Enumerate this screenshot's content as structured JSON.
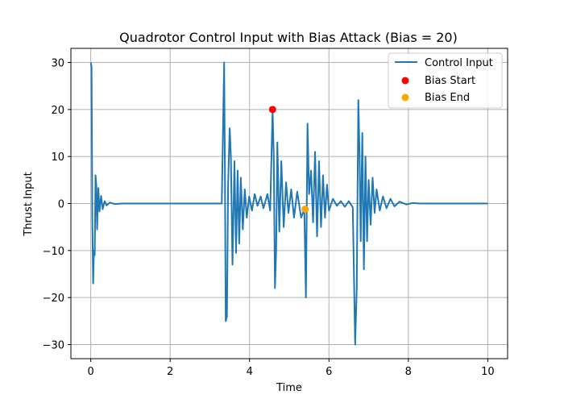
{
  "chart_data": {
    "type": "line",
    "title": "Quadrotor Control Input with Bias Attack (Bias = 20)",
    "xlabel": "Time",
    "ylabel": "Thrust Input",
    "xlim": [
      -0.5,
      10.5
    ],
    "ylim": [
      -33,
      33
    ],
    "xticks": [
      0,
      2,
      4,
      6,
      8,
      10
    ],
    "yticks": [
      -30,
      -20,
      -10,
      0,
      10,
      20,
      30
    ],
    "grid": true,
    "legend_position": "top-right",
    "series": [
      {
        "name": "Control Input",
        "color": "#1f77b4",
        "points": [
          [
            0.0,
            30
          ],
          [
            0.02,
            29
          ],
          [
            0.04,
            -3.5
          ],
          [
            0.06,
            -17
          ],
          [
            0.08,
            -10
          ],
          [
            0.1,
            -11
          ],
          [
            0.12,
            6
          ],
          [
            0.14,
            4
          ],
          [
            0.16,
            -5.5
          ],
          [
            0.19,
            3.3
          ],
          [
            0.22,
            -1.7
          ],
          [
            0.26,
            1.6
          ],
          [
            0.3,
            -1.2
          ],
          [
            0.35,
            0.5
          ],
          [
            0.4,
            -0.4
          ],
          [
            0.48,
            0.2
          ],
          [
            0.6,
            -0.1
          ],
          [
            0.8,
            0
          ],
          [
            3.3,
            0
          ],
          [
            3.36,
            30
          ],
          [
            3.38,
            6
          ],
          [
            3.4,
            -25
          ],
          [
            3.43,
            -24
          ],
          [
            3.46,
            4
          ],
          [
            3.5,
            16
          ],
          [
            3.53,
            10
          ],
          [
            3.57,
            -13
          ],
          [
            3.62,
            9
          ],
          [
            3.66,
            -10.5
          ],
          [
            3.7,
            7
          ],
          [
            3.74,
            -8.5
          ],
          [
            3.78,
            5.5
          ],
          [
            3.83,
            -5.5
          ],
          [
            3.88,
            3
          ],
          [
            3.93,
            -3
          ],
          [
            3.99,
            1.5
          ],
          [
            4.06,
            -1.5
          ],
          [
            4.13,
            2
          ],
          [
            4.2,
            -0.5
          ],
          [
            4.28,
            1.5
          ],
          [
            4.35,
            -1
          ],
          [
            4.45,
            2
          ],
          [
            4.52,
            -1.5
          ],
          [
            4.58,
            20
          ],
          [
            4.61,
            10
          ],
          [
            4.64,
            -18
          ],
          [
            4.67,
            -10
          ],
          [
            4.7,
            13
          ],
          [
            4.75,
            -6
          ],
          [
            4.8,
            9
          ],
          [
            4.86,
            -5
          ],
          [
            4.92,
            4.5
          ],
          [
            4.98,
            -2
          ],
          [
            5.05,
            3
          ],
          [
            5.12,
            -3
          ],
          [
            5.2,
            2.5
          ],
          [
            5.3,
            -3
          ],
          [
            5.38,
            -1.2
          ],
          [
            5.42,
            -20
          ],
          [
            5.46,
            17
          ],
          [
            5.5,
            2
          ],
          [
            5.55,
            7
          ],
          [
            5.6,
            -4
          ],
          [
            5.65,
            11
          ],
          [
            5.7,
            -7
          ],
          [
            5.75,
            9
          ],
          [
            5.8,
            -5
          ],
          [
            5.85,
            6
          ],
          [
            5.9,
            -3
          ],
          [
            5.95,
            4
          ],
          [
            6.0,
            -1.5
          ],
          [
            6.1,
            1
          ],
          [
            6.2,
            -0.5
          ],
          [
            6.3,
            0.5
          ],
          [
            6.4,
            -0.7
          ],
          [
            6.5,
            0.5
          ],
          [
            6.6,
            -0.8
          ],
          [
            6.66,
            -30
          ],
          [
            6.7,
            -18
          ],
          [
            6.74,
            22
          ],
          [
            6.77,
            11
          ],
          [
            6.8,
            -8
          ],
          [
            6.84,
            15
          ],
          [
            6.88,
            -14
          ],
          [
            6.92,
            10
          ],
          [
            6.96,
            -8
          ],
          [
            7.0,
            5
          ],
          [
            7.05,
            -4.5
          ],
          [
            7.1,
            5.5
          ],
          [
            7.15,
            -2
          ],
          [
            7.2,
            3
          ],
          [
            7.28,
            -1.5
          ],
          [
            7.36,
            1.5
          ],
          [
            7.45,
            -1
          ],
          [
            7.55,
            1
          ],
          [
            7.65,
            -0.6
          ],
          [
            7.78,
            0.4
          ],
          [
            7.95,
            -0.2
          ],
          [
            8.1,
            0.1
          ],
          [
            8.3,
            0
          ],
          [
            10.0,
            0
          ]
        ]
      },
      {
        "name": "Bias Start",
        "type": "scatter",
        "color": "#ff0000",
        "points": [
          [
            4.58,
            20
          ]
        ]
      },
      {
        "name": "Bias End",
        "type": "scatter",
        "color": "#ffa500",
        "points": [
          [
            5.4,
            -1.2
          ]
        ]
      }
    ]
  }
}
